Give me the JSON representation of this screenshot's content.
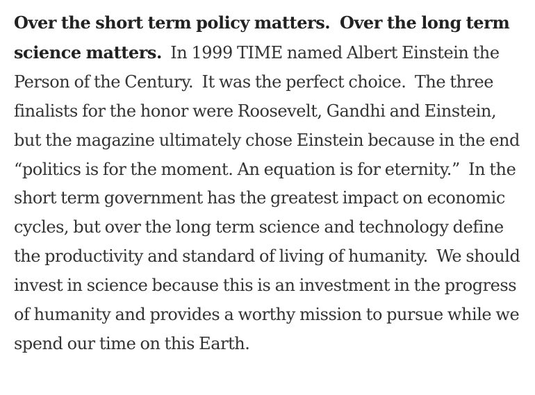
{
  "article": {
    "lead_sentence": "Over the short term policy matters.  Over the long term science matters.",
    "body_text": "  In 1999 TIME named Albert Einstein the Person of the Century.  It was the perfect choice.  The three finalists for the honor were Roosevelt, Gandhi and Einstein, but the magazine ultimately chose Einstein because in the end “politics is for the moment. An equation is for eternity.”  In the short term government has the greatest impact on economic cycles, but over the long term science and technology define the productivity and standard of living of humanity.  We should invest in science because this is an investment in the progress of humanity and provides a worthy mission to pursue while we spend our time on this Earth."
  }
}
